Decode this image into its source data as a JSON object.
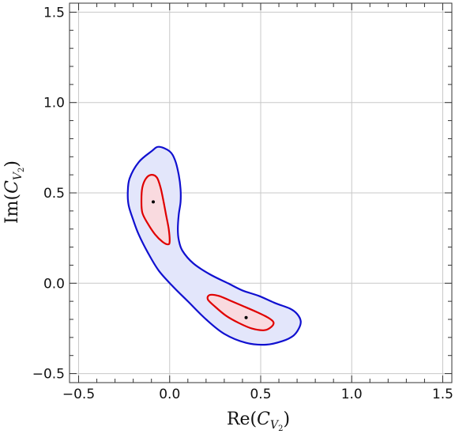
{
  "chart_data": {
    "type": "contour",
    "xlabel": {
      "prefix": "Re(",
      "var": "C",
      "sub": "V",
      "subsub": "2",
      "suffix": ")"
    },
    "ylabel": {
      "prefix": "Im(",
      "var": "C",
      "sub": "V",
      "subsub": "2",
      "suffix": ")"
    },
    "xlim": [
      -0.55,
      1.55
    ],
    "ylim": [
      -0.55,
      1.55
    ],
    "xticks": [
      -0.5,
      0.0,
      0.5,
      1.0,
      1.5
    ],
    "yticks": [
      -0.5,
      0.0,
      0.5,
      1.0,
      1.5
    ],
    "xtick_labels": [
      "−0.5",
      "0.0",
      "0.5",
      "1.0",
      "1.5"
    ],
    "ytick_labels": [
      "−0.5",
      "0.0",
      "0.5",
      "1.0",
      "1.5"
    ],
    "grid": true,
    "regions": [
      {
        "id": "outer",
        "fill": "#e3e6fb",
        "stroke": "#1010d0",
        "points": [
          [
            -0.06,
            0.755
          ],
          [
            -0.1,
            0.73
          ],
          [
            -0.17,
            0.67
          ],
          [
            -0.22,
            0.58
          ],
          [
            -0.23,
            0.5
          ],
          [
            -0.225,
            0.43
          ],
          [
            -0.2,
            0.35
          ],
          [
            -0.17,
            0.27
          ],
          [
            -0.12,
            0.17
          ],
          [
            -0.06,
            0.07
          ],
          [
            0.02,
            -0.02
          ],
          [
            0.1,
            -0.1
          ],
          [
            0.2,
            -0.2
          ],
          [
            0.3,
            -0.28
          ],
          [
            0.42,
            -0.33
          ],
          [
            0.53,
            -0.34
          ],
          [
            0.62,
            -0.32
          ],
          [
            0.68,
            -0.29
          ],
          [
            0.71,
            -0.25
          ],
          [
            0.72,
            -0.21
          ],
          [
            0.7,
            -0.17
          ],
          [
            0.66,
            -0.14
          ],
          [
            0.58,
            -0.11
          ],
          [
            0.49,
            -0.07
          ],
          [
            0.4,
            -0.04
          ],
          [
            0.32,
            0.0
          ],
          [
            0.22,
            0.05
          ],
          [
            0.13,
            0.11
          ],
          [
            0.07,
            0.18
          ],
          [
            0.05,
            0.24
          ],
          [
            0.045,
            0.3
          ],
          [
            0.05,
            0.38
          ],
          [
            0.06,
            0.45
          ],
          [
            0.06,
            0.52
          ],
          [
            0.05,
            0.6
          ],
          [
            0.03,
            0.68
          ],
          [
            0.0,
            0.73
          ]
        ]
      },
      {
        "id": "inner-upper",
        "fill": "#f9dadf",
        "stroke": "#e00000",
        "points": [
          [
            -0.1,
            0.6
          ],
          [
            -0.13,
            0.58
          ],
          [
            -0.15,
            0.53
          ],
          [
            -0.155,
            0.46
          ],
          [
            -0.15,
            0.39
          ],
          [
            -0.12,
            0.33
          ],
          [
            -0.08,
            0.27
          ],
          [
            -0.04,
            0.23
          ],
          [
            -0.01,
            0.215
          ],
          [
            0.0,
            0.23
          ],
          [
            -0.005,
            0.3
          ],
          [
            -0.02,
            0.38
          ],
          [
            -0.035,
            0.46
          ],
          [
            -0.05,
            0.53
          ],
          [
            -0.07,
            0.585
          ]
        ]
      },
      {
        "id": "inner-lower",
        "fill": "#f9dadf",
        "stroke": "#e00000",
        "points": [
          [
            0.22,
            -0.065
          ],
          [
            0.21,
            -0.09
          ],
          [
            0.25,
            -0.13
          ],
          [
            0.31,
            -0.18
          ],
          [
            0.38,
            -0.22
          ],
          [
            0.45,
            -0.25
          ],
          [
            0.52,
            -0.26
          ],
          [
            0.56,
            -0.24
          ],
          [
            0.57,
            -0.215
          ],
          [
            0.54,
            -0.19
          ],
          [
            0.48,
            -0.16
          ],
          [
            0.4,
            -0.125
          ],
          [
            0.33,
            -0.095
          ],
          [
            0.27,
            -0.07
          ]
        ]
      }
    ],
    "points": [
      {
        "x": -0.09,
        "y": 0.45
      },
      {
        "x": 0.42,
        "y": -0.19
      }
    ]
  }
}
